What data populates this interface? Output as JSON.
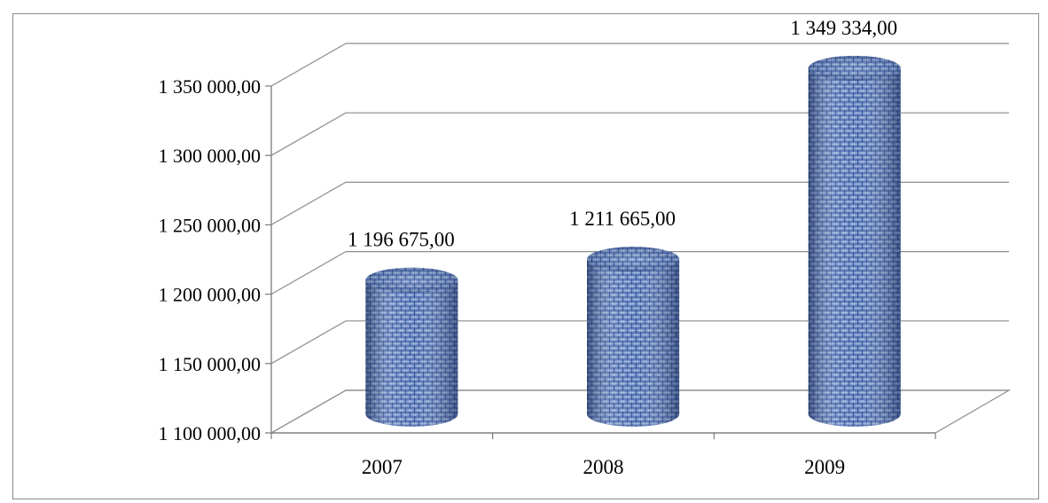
{
  "chart_data": {
    "type": "bar",
    "style": "3d-cylinder",
    "title": "",
    "xlabel": "",
    "ylabel": "",
    "categories": [
      "2007",
      "2008",
      "2009"
    ],
    "values": [
      1196675,
      1211665,
      1349334
    ],
    "value_labels": [
      "1 196 675,00",
      "1 211 665,00",
      "1 349 334,00"
    ],
    "ylim": [
      1100000,
      1350000
    ],
    "yticks": [
      1100000,
      1150000,
      1200000,
      1250000,
      1300000,
      1350000
    ],
    "ytick_labels": [
      "1 100 000,00",
      "1 150 000,00",
      "1 200 000,00",
      "1 250 000,00",
      "1 300 000,00",
      "1 350 000,00"
    ],
    "grid": true,
    "legend": "none",
    "bar_color": "#5b7fc0"
  }
}
